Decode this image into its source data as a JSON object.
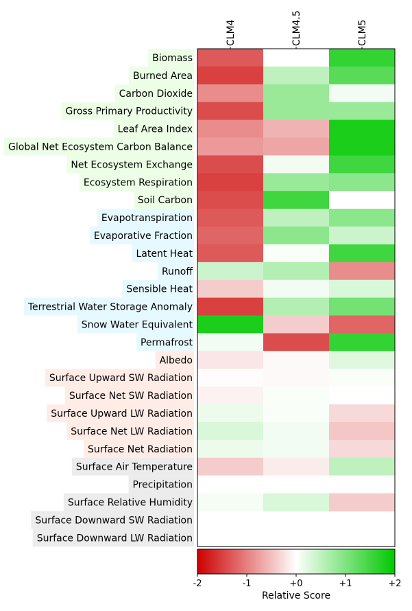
{
  "chart_data": {
    "type": "heatmap",
    "columns": [
      "CLM4",
      "CLM4.5",
      "CLM5"
    ],
    "rows": [
      {
        "label": "Biomass",
        "group": "ecosystem",
        "values": [
          -1.3,
          0.0,
          1.6
        ]
      },
      {
        "label": "Burned Area",
        "group": "ecosystem",
        "values": [
          -1.5,
          0.5,
          1.3
        ]
      },
      {
        "label": "Carbon Dioxide",
        "group": "ecosystem",
        "values": [
          -0.9,
          0.8,
          0.1
        ]
      },
      {
        "label": "Gross Primary Productivity",
        "group": "ecosystem",
        "values": [
          -1.4,
          0.8,
          0.8
        ]
      },
      {
        "label": "Leaf Area Index",
        "group": "ecosystem",
        "values": [
          -0.9,
          -0.6,
          1.8
        ]
      },
      {
        "label": "Global Net Ecosystem Carbon Balance",
        "group": "ecosystem",
        "values": [
          -0.8,
          -0.7,
          1.8
        ]
      },
      {
        "label": "Net Ecosystem Exchange",
        "group": "ecosystem",
        "values": [
          -1.4,
          0.1,
          1.5
        ]
      },
      {
        "label": "Ecosystem Respiration",
        "group": "ecosystem",
        "values": [
          -1.5,
          0.8,
          0.9
        ]
      },
      {
        "label": "Soil Carbon",
        "group": "ecosystem",
        "values": [
          -1.4,
          1.5,
          0.0
        ]
      },
      {
        "label": "Evapotranspiration",
        "group": "hydrology",
        "values": [
          -1.3,
          0.5,
          0.9
        ]
      },
      {
        "label": "Evaporative Fraction",
        "group": "hydrology",
        "values": [
          -1.2,
          0.9,
          0.4
        ]
      },
      {
        "label": "Latent Heat",
        "group": "hydrology",
        "values": [
          -1.3,
          0.05,
          1.5
        ]
      },
      {
        "label": "Runoff",
        "group": "hydrology",
        "values": [
          0.4,
          0.6,
          -0.9
        ]
      },
      {
        "label": "Sensible Heat",
        "group": "hydrology",
        "values": [
          -0.4,
          0.1,
          0.3
        ]
      },
      {
        "label": "Terrestrial Water Storage Anomaly",
        "group": "hydrology",
        "values": [
          -1.5,
          0.6,
          1.1
        ]
      },
      {
        "label": "Snow Water Equivalent",
        "group": "hydrology",
        "values": [
          1.8,
          -0.4,
          -1.2
        ]
      },
      {
        "label": "Permafrost",
        "group": "hydrology",
        "values": [
          0.1,
          -1.4,
          1.6
        ]
      },
      {
        "label": "Albedo",
        "group": "radiation",
        "values": [
          -0.2,
          -0.05,
          0.25
        ]
      },
      {
        "label": "Surface Upward SW Radiation",
        "group": "radiation",
        "values": [
          -0.02,
          -0.05,
          0.05
        ]
      },
      {
        "label": "Surface Net SW Radiation",
        "group": "radiation",
        "values": [
          -0.1,
          0.05,
          0.0
        ]
      },
      {
        "label": "Surface Upward LW Radiation",
        "group": "radiation",
        "values": [
          0.15,
          0.05,
          -0.3
        ]
      },
      {
        "label": "Surface Net LW Radiation",
        "group": "radiation",
        "values": [
          0.3,
          0.1,
          -0.45
        ]
      },
      {
        "label": "Surface Net Radiation",
        "group": "radiation",
        "values": [
          0.15,
          0.1,
          -0.3
        ]
      },
      {
        "label": "Surface Air Temperature",
        "group": "forcing",
        "values": [
          -0.4,
          -0.15,
          0.5
        ]
      },
      {
        "label": "Precipitation",
        "group": "forcing",
        "values": [
          0.0,
          0.0,
          0.0
        ]
      },
      {
        "label": "Surface Relative Humidity",
        "group": "forcing",
        "values": [
          0.08,
          0.3,
          -0.4
        ]
      },
      {
        "label": "Surface Downward SW Radiation",
        "group": "forcing",
        "values": [
          null,
          null,
          null
        ]
      },
      {
        "label": "Surface Downward LW Radiation",
        "group": "forcing",
        "values": [
          null,
          null,
          null
        ]
      }
    ],
    "group_colors": {
      "ecosystem": "#ecffe6",
      "hydrology": "#e6f9ff",
      "radiation": "#ffece6",
      "forcing": "#ececec"
    },
    "colorbar": {
      "min": -2,
      "max": 2,
      "ticks": [
        "-2",
        "-1",
        "+0",
        "+1",
        "+2"
      ],
      "label": "Relative Score",
      "colors": {
        "negative": "#cc0000",
        "neutral": "#ffffff",
        "positive": "#00c800"
      }
    }
  }
}
